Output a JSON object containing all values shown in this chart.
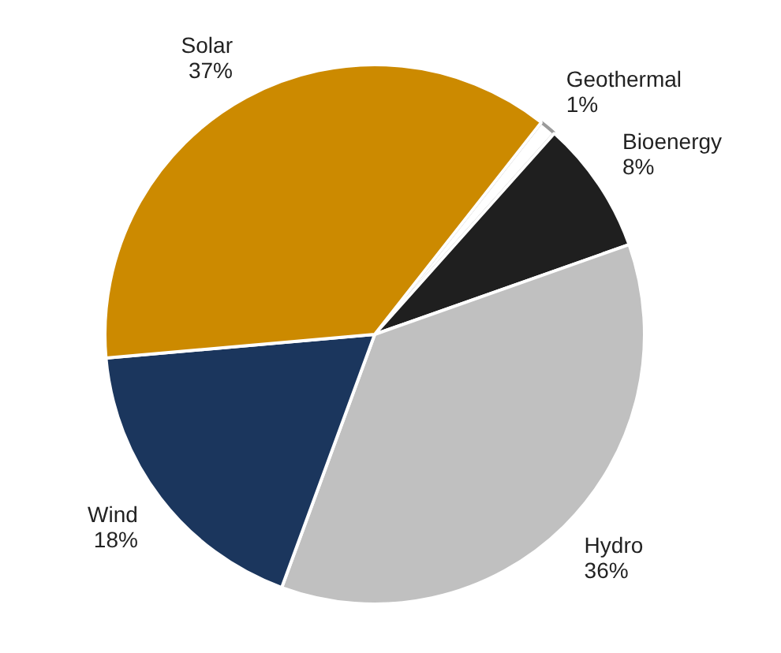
{
  "chart_data": {
    "type": "pie",
    "categories": [
      "Geothermal",
      "Bioenergy",
      "Hydro",
      "Wind",
      "Solar"
    ],
    "values": [
      1,
      8,
      36,
      18,
      37
    ],
    "value_labels": [
      "1%",
      "8%",
      "36%",
      "18%",
      "37%"
    ],
    "colors": [
      "#ffffff",
      "#1f1f1f",
      "#c0c0c0",
      "#1b365d",
      "#cc8a00"
    ],
    "legend": false
  }
}
